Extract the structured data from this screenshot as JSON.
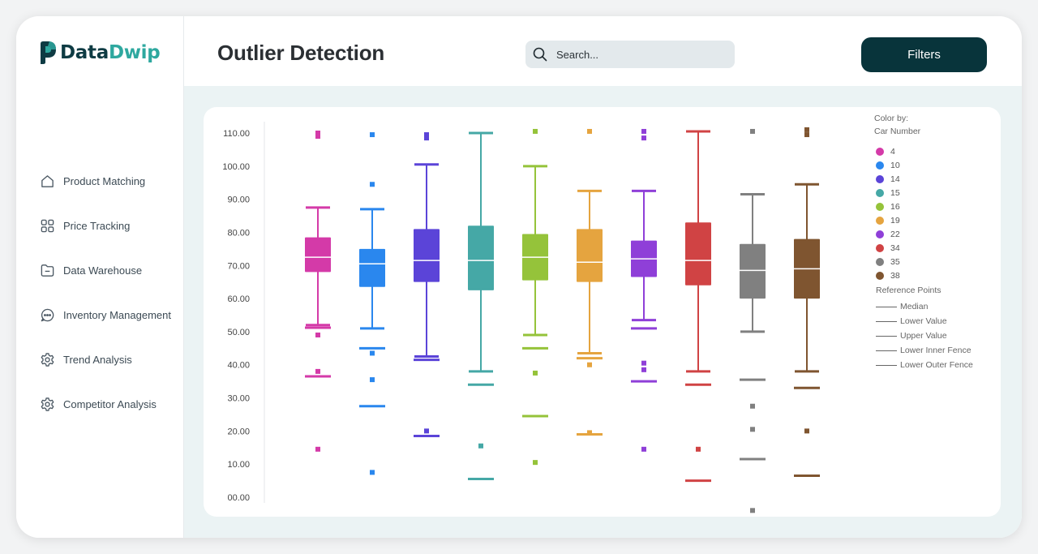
{
  "app": {
    "logo_part1": "Data",
    "logo_part2": "Dwip"
  },
  "header": {
    "title": "Outlier Detection",
    "search_placeholder": "Search...",
    "filters_label": "Filters"
  },
  "sidebar": {
    "items": [
      {
        "label": "Product Matching",
        "icon": "home-icon"
      },
      {
        "label": "Price Tracking",
        "icon": "grid-icon"
      },
      {
        "label": "Data Warehouse",
        "icon": "folder-icon"
      },
      {
        "label": "Inventory Management",
        "icon": "chat-icon"
      },
      {
        "label": "Trend Analysis",
        "icon": "gear-icon"
      },
      {
        "label": "Competitor Analysis",
        "icon": "gear-icon"
      }
    ]
  },
  "chart_data": {
    "type": "box",
    "ylim": [
      0,
      110
    ],
    "yticks": [
      0,
      10,
      20,
      30,
      40,
      50,
      60,
      70,
      80,
      90,
      100,
      110
    ],
    "ytick_labels": [
      "00.00",
      "10.00",
      "20.00",
      "30.00",
      "40.00",
      "50.00",
      "60.00",
      "70.00",
      "80.00",
      "90.00",
      "100.00",
      "110.00"
    ],
    "legend_title_1": "Color by:",
    "legend_title_2": "Car Number",
    "reference_title": "Reference Points",
    "reference_items": [
      "Median",
      "Lower Value",
      "Upper Value",
      "Lower Inner Fence",
      "Lower Outer Fence"
    ],
    "series": [
      {
        "name": "4",
        "color": "#d43aa8",
        "q1": 68,
        "median": 72.5,
        "q3": 78.5,
        "lower": 52,
        "upper": 87.5,
        "fences": [
          51.2,
          36.5
        ],
        "outliers": [
          110,
          109,
          49,
          38,
          14.5
        ]
      },
      {
        "name": "10",
        "color": "#2a87ee",
        "q1": 63.5,
        "median": 70.5,
        "q3": 75,
        "lower": 51,
        "upper": 87,
        "fences": [
          45,
          27.5
        ],
        "outliers": [
          109.5,
          94.5,
          43.5,
          35.5,
          7.5
        ]
      },
      {
        "name": "14",
        "color": "#5b44d8",
        "q1": 65,
        "median": 71.5,
        "q3": 81,
        "lower": 42.5,
        "upper": 100.5,
        "fences": [
          41.5,
          18.5
        ],
        "outliers": [
          109.5,
          108.5,
          20
        ]
      },
      {
        "name": "15",
        "color": "#45a8a6",
        "q1": 62.5,
        "median": 71.5,
        "q3": 82,
        "lower": 38,
        "upper": 110,
        "fences": [
          34,
          5.5
        ],
        "outliers": [
          15.5
        ]
      },
      {
        "name": "16",
        "color": "#95c33a",
        "q1": 65.5,
        "median": 72.5,
        "q3": 79.5,
        "lower": 49,
        "upper": 100,
        "fences": [
          45,
          24.5
        ],
        "outliers": [
          110.5,
          37.5,
          10.5
        ]
      },
      {
        "name": "19",
        "color": "#e5a43f",
        "q1": 65,
        "median": 71,
        "q3": 81,
        "lower": 43.5,
        "upper": 92.5,
        "fences": [
          42,
          19
        ],
        "outliers": [
          110.5,
          40,
          19.5
        ]
      },
      {
        "name": "22",
        "color": "#8f3fd8",
        "q1": 66.5,
        "median": 72,
        "q3": 77.5,
        "lower": 53.5,
        "upper": 92.5,
        "fences": [
          51,
          35
        ],
        "outliers": [
          110.5,
          108.5,
          40.5,
          38.5,
          14.5
        ]
      },
      {
        "name": "34",
        "color": "#d04344",
        "q1": 64,
        "median": 71.5,
        "q3": 83,
        "lower": 38,
        "upper": 110.5,
        "fences": [
          34,
          5
        ],
        "outliers": [
          14.5
        ]
      },
      {
        "name": "35",
        "color": "#808080",
        "q1": 60,
        "median": 68.5,
        "q3": 76.5,
        "lower": 50,
        "upper": 91.5,
        "fences": [
          35.5,
          11.5
        ],
        "outliers": [
          110.5,
          27.5,
          20.5,
          -4
        ]
      },
      {
        "name": "38",
        "color": "#7f5530",
        "q1": 60,
        "median": 69,
        "q3": 78,
        "lower": 38,
        "upper": 94.5,
        "fences": [
          33,
          6.5
        ],
        "outliers": [
          111,
          109.5,
          20
        ]
      }
    ]
  }
}
